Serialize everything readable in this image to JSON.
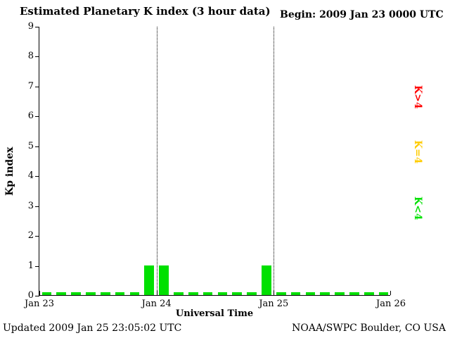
{
  "begin_label": "Begin:  2009 Jan 23 0000 UTC",
  "footer": {
    "updated": "Updated 2009 Jan 25 23:05:02 UTC",
    "source": "NOAA/SWPC Boulder, CO USA"
  },
  "legend": {
    "items": [
      {
        "label": "K>4",
        "color": "#ff0000"
      },
      {
        "label": "K=4",
        "color": "#ffcc00"
      },
      {
        "label": "K<4",
        "color": "#00e000"
      }
    ]
  },
  "chart_data": {
    "type": "bar",
    "title": "Estimated Planetary K index (3 hour data)",
    "xlabel": "Universal Time",
    "ylabel": "Kp index",
    "interval_hours": 3,
    "ylim": [
      0,
      9
    ],
    "y_ticks": [
      0,
      1,
      2,
      3,
      4,
      5,
      6,
      7,
      8,
      9
    ],
    "x_ticks": [
      "Jan 23",
      "Jan 24",
      "Jan 25",
      "Jan 26"
    ],
    "values": [
      0,
      0,
      0,
      0,
      0,
      0,
      0,
      1,
      1,
      0,
      0,
      0,
      0,
      0,
      0,
      1,
      0,
      0,
      0,
      0,
      0,
      0,
      0,
      0
    ],
    "color_rule": {
      "below_4": "#00e000",
      "equal_4": "#ffcc00",
      "above_4": "#ff0000"
    },
    "grid": "dotted vertical lines at day boundaries",
    "legend_position": "right",
    "bar_color": "#00e000"
  }
}
